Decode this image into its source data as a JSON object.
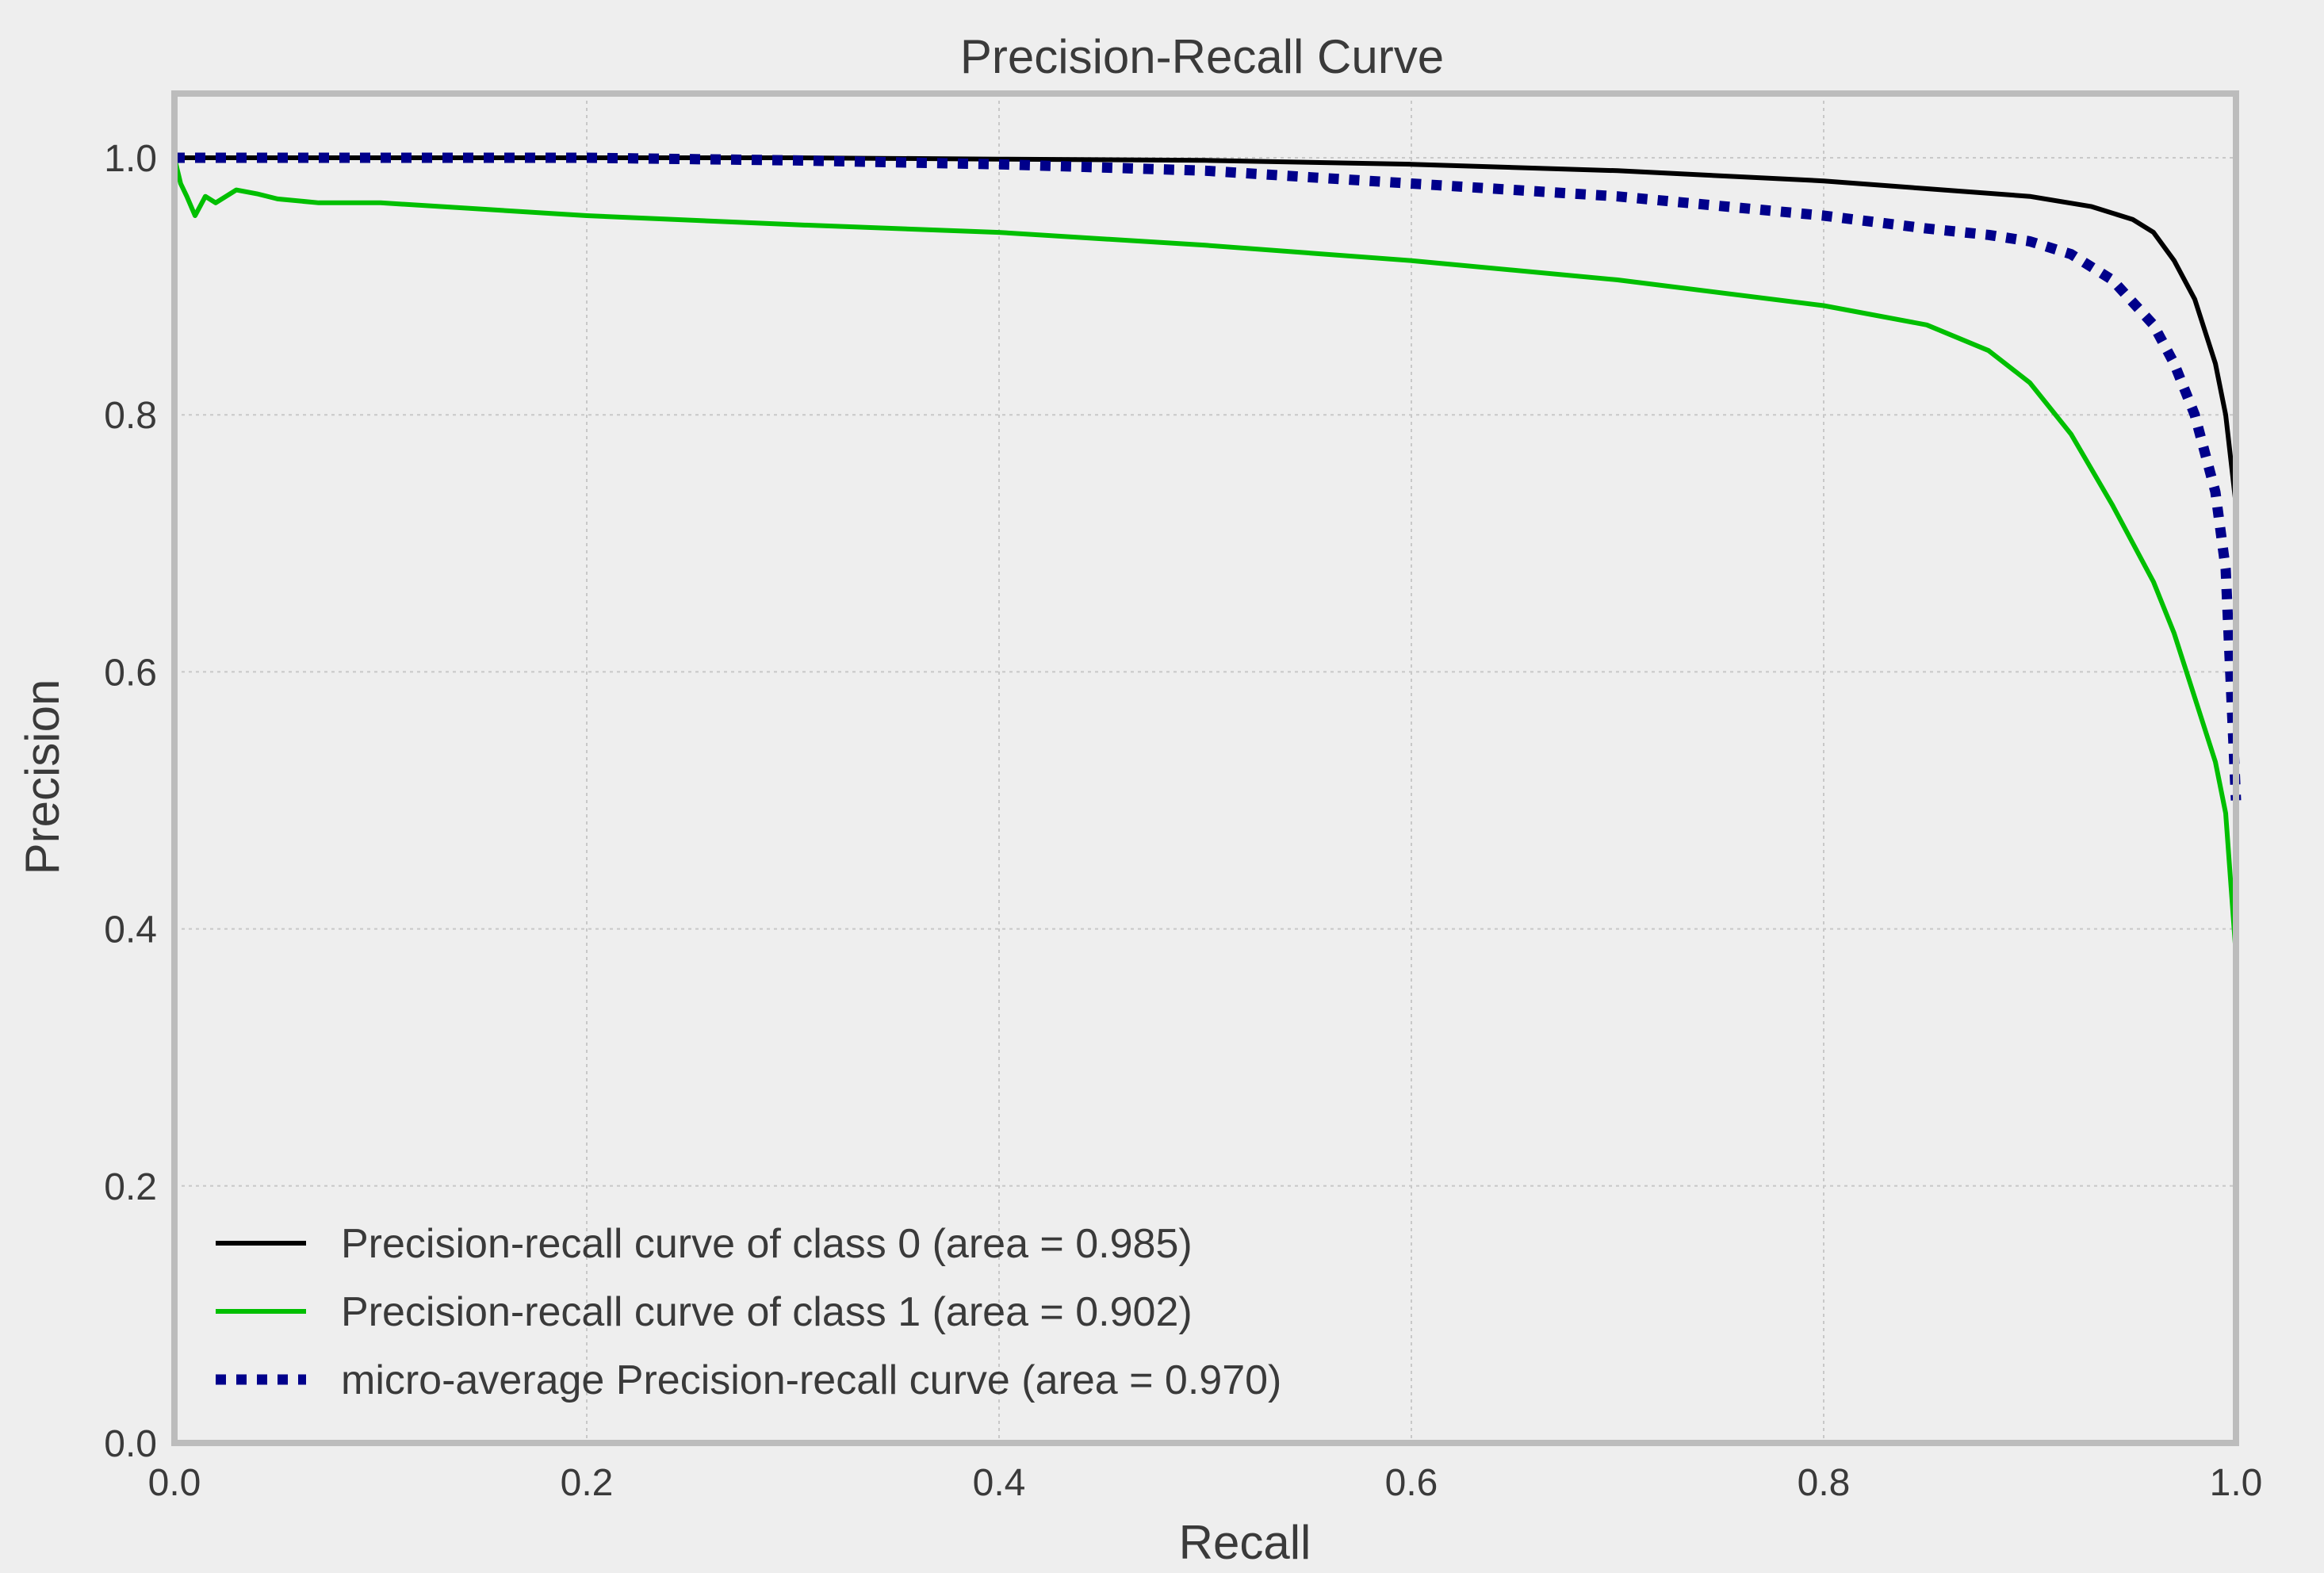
{
  "chart_data": {
    "type": "line",
    "title": "Precision-Recall Curve",
    "xlabel": "Recall",
    "ylabel": "Precision",
    "xlim": [
      0.0,
      1.0
    ],
    "ylim": [
      0.0,
      1.05
    ],
    "grid": true,
    "legend_position": "bottom-left",
    "x_ticks": [
      0.0,
      0.2,
      0.4,
      0.6,
      0.8,
      1.0
    ],
    "y_ticks": [
      0.0,
      0.2,
      0.4,
      0.6,
      0.8,
      1.0
    ],
    "x_tick_labels": [
      "0.0",
      "0.2",
      "0.4",
      "0.6",
      "0.8",
      "1.0"
    ],
    "y_tick_labels": [
      "0.0",
      "0.2",
      "0.4",
      "0.6",
      "0.8",
      "1.0"
    ],
    "series": [
      {
        "name": "Precision-recall curve of class 0 (area = 0.985)",
        "color": "#000000",
        "style": "solid",
        "x": [
          0.0,
          0.1,
          0.2,
          0.3,
          0.4,
          0.5,
          0.6,
          0.7,
          0.8,
          0.85,
          0.9,
          0.93,
          0.95,
          0.96,
          0.97,
          0.98,
          0.99,
          0.995,
          1.0
        ],
        "y": [
          1.0,
          1.0,
          1.0,
          1.0,
          0.999,
          0.998,
          0.995,
          0.99,
          0.982,
          0.976,
          0.97,
          0.962,
          0.952,
          0.942,
          0.92,
          0.89,
          0.84,
          0.8,
          0.73
        ]
      },
      {
        "name": "Precision-recall curve of class 1 (area = 0.902)",
        "color": "#00bf00",
        "style": "solid",
        "x": [
          0.0,
          0.003,
          0.006,
          0.01,
          0.015,
          0.02,
          0.03,
          0.04,
          0.05,
          0.07,
          0.1,
          0.15,
          0.2,
          0.3,
          0.4,
          0.5,
          0.6,
          0.7,
          0.8,
          0.85,
          0.88,
          0.9,
          0.92,
          0.94,
          0.96,
          0.97,
          0.98,
          0.99,
          0.995,
          1.0
        ],
        "y": [
          1.0,
          0.98,
          0.97,
          0.955,
          0.97,
          0.965,
          0.975,
          0.972,
          0.968,
          0.965,
          0.965,
          0.96,
          0.955,
          0.948,
          0.942,
          0.932,
          0.92,
          0.905,
          0.885,
          0.87,
          0.85,
          0.825,
          0.785,
          0.73,
          0.67,
          0.63,
          0.58,
          0.53,
          0.49,
          0.38
        ]
      },
      {
        "name": "micro-average Precision-recall curve (area = 0.970)",
        "color": "#00008b",
        "style": "dotted",
        "x": [
          0.0,
          0.1,
          0.2,
          0.3,
          0.4,
          0.5,
          0.6,
          0.7,
          0.8,
          0.85,
          0.88,
          0.9,
          0.92,
          0.94,
          0.96,
          0.97,
          0.98,
          0.99,
          0.995,
          1.0
        ],
        "y": [
          1.0,
          1.0,
          1.0,
          0.998,
          0.995,
          0.99,
          0.98,
          0.97,
          0.955,
          0.945,
          0.94,
          0.935,
          0.925,
          0.905,
          0.87,
          0.84,
          0.8,
          0.74,
          0.68,
          0.5
        ]
      }
    ]
  }
}
